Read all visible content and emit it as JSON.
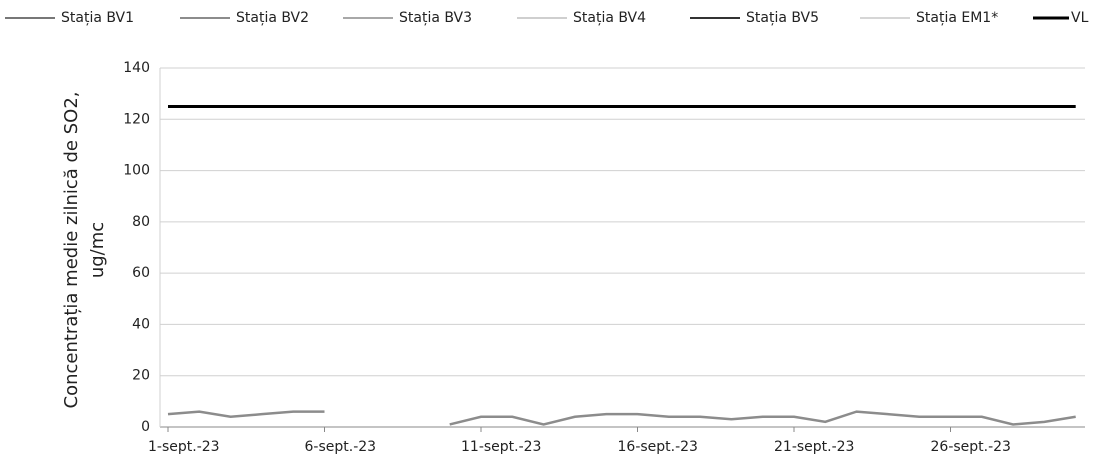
{
  "chart_data": {
    "type": "line",
    "ylabel": [
      "Concentrația medie zilnică de SO2,",
      "ug/mc"
    ],
    "categories": [
      "1-sept.-23",
      null,
      null,
      null,
      null,
      "6-sept.-23",
      null,
      null,
      null,
      null,
      "11-sept.-23",
      null,
      null,
      null,
      null,
      "16-sept.-23",
      null,
      null,
      null,
      null,
      "21-sept.-23",
      null,
      null,
      null,
      null,
      "26-sept.-23",
      null,
      null,
      null,
      null
    ],
    "series": [
      {
        "name": "Stația BV1",
        "color": "#777777",
        "values": [
          null,
          null,
          null,
          null,
          null,
          null,
          null,
          null,
          null,
          null,
          null,
          null,
          null,
          null,
          null,
          null,
          null,
          null,
          null,
          null,
          null,
          null,
          null,
          null,
          null,
          null,
          null,
          null,
          null,
          null
        ]
      },
      {
        "name": "Stația BV2",
        "color": "#8c8c8c",
        "values": [
          5,
          6,
          4,
          5,
          6,
          6,
          null,
          null,
          null,
          1,
          4,
          4,
          1,
          4,
          5,
          5,
          4,
          4,
          3,
          4,
          4,
          2,
          6,
          5,
          4,
          4,
          4,
          1,
          2,
          4
        ]
      },
      {
        "name": "Stația BV3",
        "color": "#a8a8a8",
        "values": [
          null,
          null,
          null,
          null,
          null,
          null,
          null,
          null,
          null,
          null,
          null,
          null,
          null,
          null,
          null,
          null,
          null,
          null,
          null,
          null,
          null,
          null,
          null,
          null,
          null,
          null,
          null,
          null,
          null,
          null
        ]
      },
      {
        "name": "Stația BV4",
        "color": "#cfcfcf",
        "values": [
          null,
          null,
          null,
          null,
          null,
          null,
          null,
          null,
          null,
          null,
          null,
          null,
          null,
          null,
          null,
          null,
          null,
          null,
          null,
          null,
          null,
          null,
          null,
          null,
          null,
          null,
          null,
          null,
          null,
          null
        ]
      },
      {
        "name": "Stația BV5",
        "color": "#333333",
        "values": [
          null,
          null,
          null,
          null,
          null,
          null,
          null,
          null,
          null,
          null,
          null,
          null,
          null,
          null,
          null,
          null,
          null,
          null,
          null,
          null,
          null,
          null,
          null,
          null,
          null,
          null,
          null,
          null,
          null,
          null
        ]
      },
      {
        "name": "Stația EM1*",
        "color": "#d6d6d6",
        "values": [
          null,
          null,
          null,
          null,
          null,
          null,
          null,
          null,
          null,
          null,
          null,
          null,
          null,
          null,
          null,
          null,
          null,
          null,
          null,
          null,
          null,
          null,
          null,
          null,
          null,
          null,
          null,
          null,
          null,
          null
        ]
      },
      {
        "name": "VL",
        "color": "#000000",
        "values": [
          125,
          125,
          125,
          125,
          125,
          125,
          125,
          125,
          125,
          125,
          125,
          125,
          125,
          125,
          125,
          125,
          125,
          125,
          125,
          125,
          125,
          125,
          125,
          125,
          125,
          125,
          125,
          125,
          125,
          125
        ]
      }
    ],
    "ylim": [
      0,
      140
    ],
    "yticks": [
      0,
      20,
      40,
      60,
      80,
      100,
      120,
      140
    ],
    "grid": true
  }
}
